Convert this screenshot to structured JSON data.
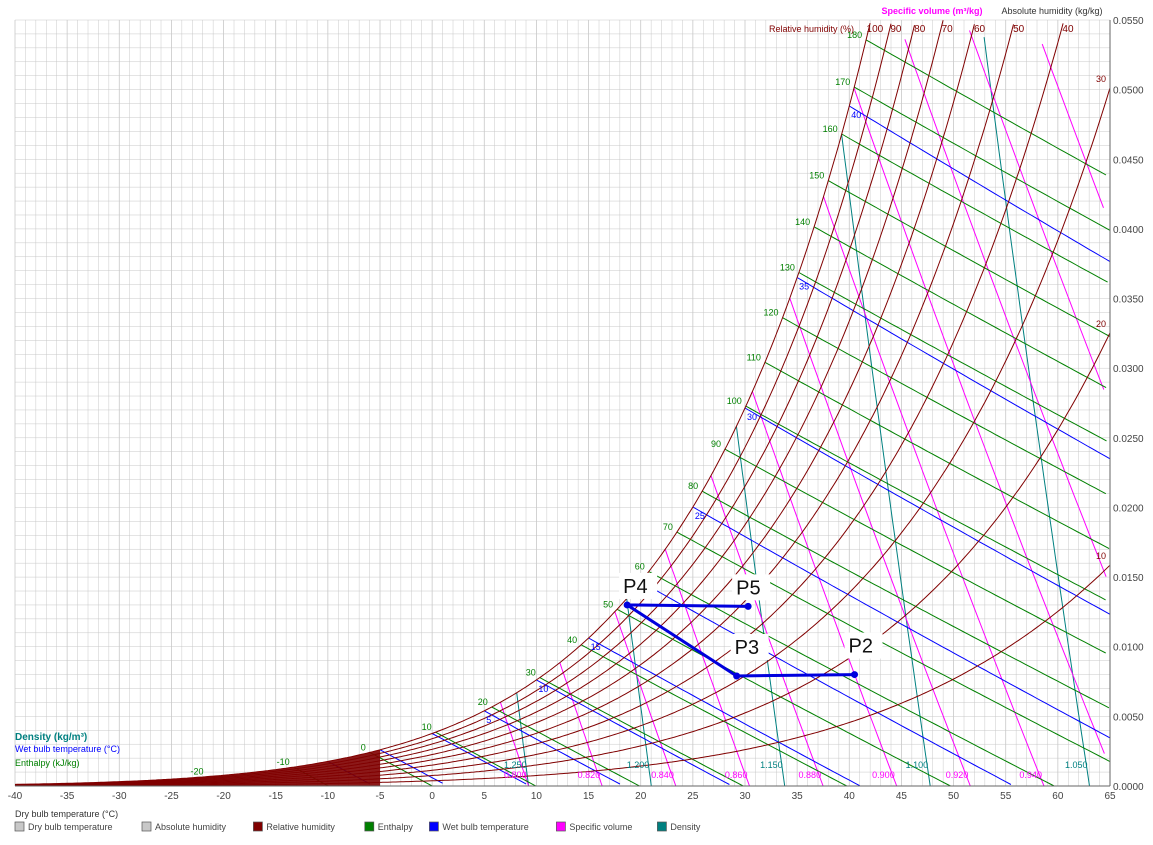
{
  "chart_data": {
    "type": "psychrometric",
    "x_axis": {
      "label": "Dry bulb temperature (°C)",
      "min": -40,
      "max": 65,
      "step": 5,
      "ticks": [
        "-40",
        "-35",
        "-30",
        "-25",
        "-20",
        "-15",
        "-10",
        "-5",
        "0",
        "5",
        "10",
        "15",
        "20",
        "25",
        "30",
        "35",
        "40",
        "45",
        "50",
        "55",
        "60",
        "65"
      ]
    },
    "y_axis": {
      "label": "Absolute humidity (kg/kg)",
      "min": 0,
      "max": 0.055,
      "step": 0.005,
      "ticks": [
        "0.0000",
        "0.0050",
        "0.0100",
        "0.0150",
        "0.0200",
        "0.0250",
        "0.0300",
        "0.0350",
        "0.0400",
        "0.0450",
        "0.0500",
        "0.0550"
      ]
    },
    "top_labels": {
      "specific_volume": "Specific volume (m³/kg)",
      "relative_humidity": "Relative humidity (%)",
      "rh_values": [
        "100",
        "90",
        "80",
        "70",
        "60",
        "50",
        "40"
      ]
    },
    "left_labels": {
      "density": "Density (kg/m³)",
      "wet_bulb": "Wet bulb temperature (°C)",
      "enthalpy": "Enthalpy (kJ/kg)"
    },
    "relative_humidity_curves": [
      100,
      90,
      80,
      70,
      60,
      50,
      40,
      30,
      20,
      10
    ],
    "enthalpy_lines": [
      -10,
      0,
      10,
      20,
      30,
      40,
      50,
      60,
      70,
      80,
      90,
      100,
      110,
      120,
      130,
      140,
      150,
      160,
      170,
      180
    ],
    "enthalpy_labels": [
      "-20",
      "-10",
      "0",
      "10",
      "20",
      "30",
      "40",
      "50",
      "60",
      "70",
      "80",
      "90",
      "100",
      "110",
      "120",
      "130",
      "140",
      "150",
      "160",
      "170",
      "180"
    ],
    "wet_bulb_lines": [
      -10,
      -5,
      0,
      5,
      10,
      15,
      20,
      25,
      30,
      35,
      40
    ],
    "wet_bulb_labels": [
      "5",
      "10",
      "15",
      "20",
      "25",
      "30",
      "35",
      "40"
    ],
    "specific_volume_lines": [
      0.8,
      0.82,
      0.84,
      0.86,
      0.88,
      0.9,
      0.92,
      0.94,
      0.96,
      0.98,
      1.0,
      1.02
    ],
    "specific_volume_labels": [
      "0.800",
      "0.820",
      "0.840",
      "0.860",
      "0.880",
      "0.900",
      "0.920",
      "0.940",
      "0.960",
      "0.980",
      "1.000",
      "1.020"
    ],
    "density_lines": [
      1.25,
      1.2,
      1.15,
      1.1,
      1.05
    ],
    "density_labels": [
      "1.250",
      "1.200",
      "1.150",
      "1.100",
      "1.050"
    ],
    "right_rh_labels": [
      "30",
      "20",
      "10"
    ],
    "process_points": [
      {
        "name": "P2",
        "x": 40.5,
        "y": 0.008
      },
      {
        "name": "P3",
        "x": 29.2,
        "y": 0.0079
      },
      {
        "name": "P4",
        "x": 18.7,
        "y": 0.013
      },
      {
        "name": "P5",
        "x": 30.3,
        "y": 0.0129
      }
    ],
    "process_lines": [
      [
        "P2",
        "P3"
      ],
      [
        "P3",
        "P4"
      ],
      [
        "P4",
        "P5"
      ]
    ],
    "legend": [
      {
        "label": "Dry bulb temperature",
        "color": "#c8c8c8"
      },
      {
        "label": "Absolute humidity",
        "color": "#c8c8c8"
      },
      {
        "label": "Relative humidity",
        "color": "#800000"
      },
      {
        "label": "Enthalpy",
        "color": "#008000"
      },
      {
        "label": "Wet bulb temperature",
        "color": "#0000ff"
      },
      {
        "label": "Specific volume",
        "color": "#ff00ff"
      },
      {
        "label": "Density",
        "color": "#008080"
      }
    ],
    "grid": true,
    "colors": {
      "grid": "#c8c8c8",
      "rh": "#800000",
      "enthalpy": "#008000",
      "wet_bulb": "#0000ff",
      "specific_volume": "#ff00ff",
      "density": "#008080",
      "process": "#0000dd"
    }
  }
}
